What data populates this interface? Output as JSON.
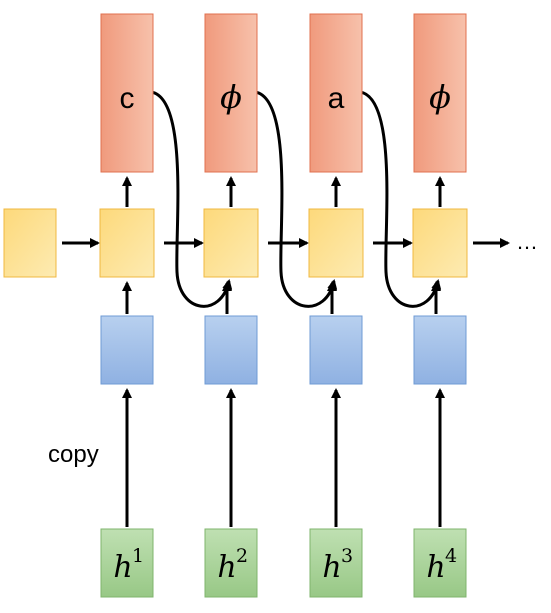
{
  "diagram": {
    "outputs": [
      {
        "label": "c",
        "style": "plain"
      },
      {
        "label": "ϕ",
        "style": "phi"
      },
      {
        "label": "a",
        "style": "plain"
      },
      {
        "label": "ϕ",
        "style": "phi"
      }
    ],
    "inputs": [
      {
        "base": "h",
        "sup": "1"
      },
      {
        "base": "h",
        "sup": "2"
      },
      {
        "base": "h",
        "sup": "3"
      },
      {
        "base": "h",
        "sup": "4"
      }
    ],
    "copy_label": "copy",
    "continuation": "…",
    "colors": {
      "output_box": "#f4a48a",
      "output_box_light": "#f6c0aa",
      "output_border": "#e0704f",
      "hidden_box": "#fde49a",
      "hidden_box_light": "#fbd06a",
      "hidden_border": "#f0b840",
      "encoder_box": "#a9c5ea",
      "encoder_box_dark": "#8fb0e0",
      "encoder_border": "#6f9bd4",
      "input_box": "#aed6a0",
      "input_box_dark": "#99c98a",
      "input_border": "#7fb46c",
      "arrow": "#000000"
    }
  }
}
